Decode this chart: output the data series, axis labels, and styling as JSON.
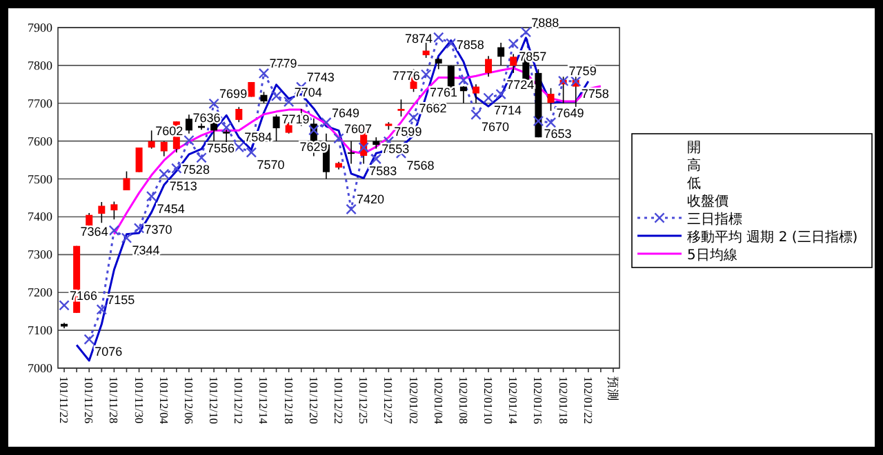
{
  "chart_data": {
    "type": "candlestick",
    "categories": [
      "101/11/22",
      null,
      "101/11/26",
      null,
      "101/11/28",
      null,
      "101/11/30",
      null,
      "101/12/04",
      null,
      "101/12/06",
      null,
      "101/12/10",
      null,
      "101/12/12",
      null,
      "101/12/14",
      null,
      "101/12/18",
      null,
      "101/12/20",
      null,
      "101/12/22",
      null,
      "101/12/25",
      null,
      "101/12/27",
      null,
      "102/01/02",
      null,
      "102/01/04",
      null,
      "102/01/08",
      null,
      "102/01/10",
      null,
      "102/01/14",
      null,
      "102/01/16",
      null,
      "102/01/18",
      null,
      "102/01/22",
      null,
      "預測"
    ],
    "ohlc": [
      [
        7117,
        7120,
        7105,
        7110
      ],
      [
        7146,
        7323,
        7146,
        7323
      ],
      [
        7372,
        7410,
        7370,
        7405
      ],
      [
        7408,
        7439,
        7384,
        7429
      ],
      [
        7417,
        7440,
        7393,
        7433
      ],
      [
        7470,
        7520,
        7470,
        7502
      ],
      [
        7518,
        7583,
        7518,
        7583
      ],
      [
        7583,
        7628,
        7580,
        7600
      ],
      [
        7573,
        7600,
        7560,
        7598
      ],
      [
        7579,
        7652,
        7570,
        7652
      ],
      [
        7659,
        7670,
        7620,
        7628
      ],
      [
        7640,
        7670,
        7630,
        7635
      ],
      [
        7659,
        7665,
        7600,
        7628
      ],
      [
        7625,
        7630,
        7580,
        7620
      ],
      [
        7656,
        7690,
        7650,
        7685
      ],
      [
        7717,
        7756,
        7717,
        7756
      ],
      [
        7722,
        7730,
        7700,
        7705
      ],
      [
        7665,
        7670,
        7600,
        7634
      ],
      [
        7622,
        7650,
        7620,
        7646
      ],
      [
        7650,
        7685,
        7640,
        7655
      ],
      [
        7646,
        7660,
        7560,
        7598
      ],
      [
        7591,
        7620,
        7500,
        7518
      ],
      [
        7530,
        7545,
        7525,
        7542
      ],
      [
        7570,
        7600,
        7540,
        7567
      ],
      [
        7561,
        7640,
        7540,
        7634
      ],
      [
        7600,
        7610,
        7580,
        7590
      ],
      [
        7640,
        7650,
        7630,
        7646
      ],
      [
        7680,
        7710,
        7665,
        7685
      ],
      [
        7738,
        7790,
        7730,
        7787
      ],
      [
        7827,
        7860,
        7820,
        7839
      ],
      [
        7817,
        7820,
        7790,
        7805
      ],
      [
        7799,
        7800,
        7720,
        7744
      ],
      [
        7744,
        7745,
        7700,
        7732
      ],
      [
        7726,
        7750,
        7700,
        7744
      ],
      [
        7780,
        7825,
        7770,
        7817
      ],
      [
        7848,
        7860,
        7800,
        7823
      ],
      [
        7799,
        7830,
        7780,
        7823
      ],
      [
        7823,
        7840,
        7740,
        7762
      ],
      [
        7780,
        7790,
        7610,
        7610
      ],
      [
        7701,
        7740,
        7680,
        7725
      ],
      [
        7750,
        7770,
        7700,
        7762
      ],
      [
        7744,
        7770,
        7690,
        7762
      ],
      null,
      null,
      null
    ],
    "ylim": [
      7000,
      7900
    ],
    "yticks": [
      7000,
      7100,
      7200,
      7300,
      7400,
      7500,
      7600,
      7700,
      7800,
      7900
    ],
    "grid": "y",
    "legend": "right",
    "annotations": [
      "開",
      "高",
      "低",
      "收盤價"
    ],
    "series": [
      {
        "name": "三日指標",
        "type": "line",
        "color": "#4b4bd8",
        "marker": "cross",
        "line_style": "dotted",
        "values": [
          7166,
          null,
          7076,
          7155,
          7364,
          7344,
          7370,
          7454,
          7513,
          7528,
          7602,
          7556,
          7699,
          7636,
          7584,
          7570,
          7779,
          7719,
          7704,
          7743,
          7629,
          7649,
          7607,
          7420,
          7583,
          7553,
          7599,
          7568,
          7662,
          7776,
          7874,
          7858,
          7761,
          7670,
          7714,
          7724,
          7857,
          7888,
          7653,
          7649,
          7759,
          7758,
          null,
          null,
          null
        ],
        "value_labels": [
          "7166",
          null,
          "7076",
          "7155",
          "7364",
          "7344",
          "7370",
          "7454",
          "7513",
          "7528",
          "7602",
          "7556",
          "7699",
          "7636",
          "7584",
          "7570",
          "7779",
          "7719",
          "7704",
          "7743",
          "7629",
          "7649",
          "7607",
          "7420",
          "7583",
          "7553",
          "7599",
          "7568",
          "7662",
          "7776",
          "7874",
          "7858",
          "7761",
          "7670",
          "7714",
          "7724",
          "7857",
          "7888",
          "7653",
          "7649",
          "7759",
          "7758",
          null,
          null,
          null
        ]
      },
      {
        "name": "移動平均 週期 2 (三日指標)",
        "type": "line",
        "color": "#0000cc",
        "line_style": "solid",
        "values": [
          null,
          7061,
          7020,
          7116,
          7260,
          7354,
          7357,
          7412,
          7484,
          7521,
          7565,
          7579,
          7628,
          7668,
          7610,
          7577,
          7675,
          7749,
          7712,
          7724,
          7686,
          7639,
          7628,
          7514,
          7502,
          7568,
          7576,
          7584,
          7615,
          7719,
          7825,
          7866,
          7810,
          7716,
          7692,
          7719,
          7791,
          7873,
          7771,
          7701,
          7704,
          7704,
          7758,
          null,
          null
        ]
      },
      {
        "name": "5日均線",
        "type": "line",
        "color": "#ff00ff",
        "line_style": "solid",
        "values": [
          null,
          null,
          null,
          null,
          7354,
          7410,
          7463,
          7510,
          7549,
          7578,
          7598,
          7615,
          7628,
          7628,
          7628,
          7650,
          7671,
          7678,
          7683,
          7683,
          7665,
          7646,
          7610,
          7573,
          7567,
          7585,
          7610,
          7650,
          7695,
          7735,
          7768,
          7768,
          7766,
          7772,
          7780,
          7787,
          7793,
          7780,
          7744,
          7713,
          7705,
          7705,
          7738,
          7745,
          null
        ]
      }
    ]
  }
}
